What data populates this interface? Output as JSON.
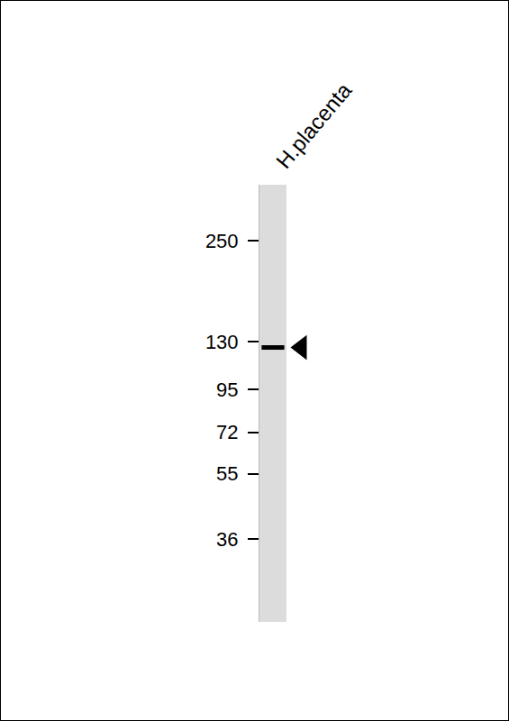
{
  "chart_data": {
    "type": "western_blot",
    "lanes": [
      "H.placenta"
    ],
    "bands": [
      {
        "lane": "H.placenta",
        "value": 125
      }
    ],
    "ylim": [
      21,
      360
    ],
    "yticks": [
      250,
      130,
      95,
      72,
      55,
      36
    ],
    "log": "y",
    "color": "#000000"
  }
}
